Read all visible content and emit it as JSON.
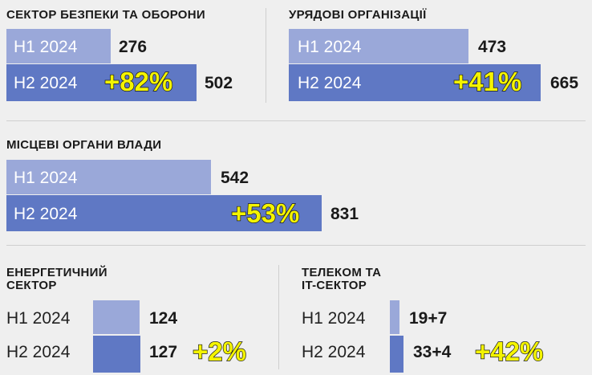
{
  "colors": {
    "h1": "#9aa8d9",
    "h2": "#5f78c4",
    "highlight": "#f4f400",
    "background": "#efefef"
  },
  "chart_data": [
    {
      "type": "bar",
      "title": "СЕКТОР БЕЗПЕКИ ТА ОБОРОНИ",
      "categories": [
        "H1 2024",
        "H2 2024"
      ],
      "values": [
        276,
        502
      ],
      "value_labels": [
        "276",
        "502"
      ],
      "change": "+82%"
    },
    {
      "type": "bar",
      "title": "УРЯДОВІ ОРГАНІЗАЦІЇ",
      "categories": [
        "H1 2024",
        "H2 2024"
      ],
      "values": [
        473,
        665
      ],
      "value_labels": [
        "473",
        "665"
      ],
      "change": "+41%"
    },
    {
      "type": "bar",
      "title": "МІСЦЕВІ ОРГАНИ ВЛАДИ",
      "categories": [
        "H1 2024",
        "H2 2024"
      ],
      "values": [
        542,
        831
      ],
      "value_labels": [
        "542",
        "831"
      ],
      "change": "+53%"
    },
    {
      "type": "bar",
      "title": "ЕНЕРГЕТИЧНИЙ СЕКТОР",
      "title_lines": [
        "ЕНЕРГЕТИЧНИЙ",
        "СЕКТОР"
      ],
      "categories": [
        "H1 2024",
        "H2 2024"
      ],
      "values": [
        124,
        127
      ],
      "value_labels": [
        "124",
        "127"
      ],
      "change": "+2%"
    },
    {
      "type": "bar",
      "title": "ТЕЛЕКОМ ТА IT-СЕКТОР",
      "title_lines": [
        "ТЕЛЕКОМ ТА",
        "IT-СЕКТОР"
      ],
      "categories": [
        "H1 2024",
        "H2 2024"
      ],
      "values": [
        26,
        37
      ],
      "value_labels": [
        "19+7",
        "33+4"
      ],
      "change": "+42%"
    }
  ]
}
